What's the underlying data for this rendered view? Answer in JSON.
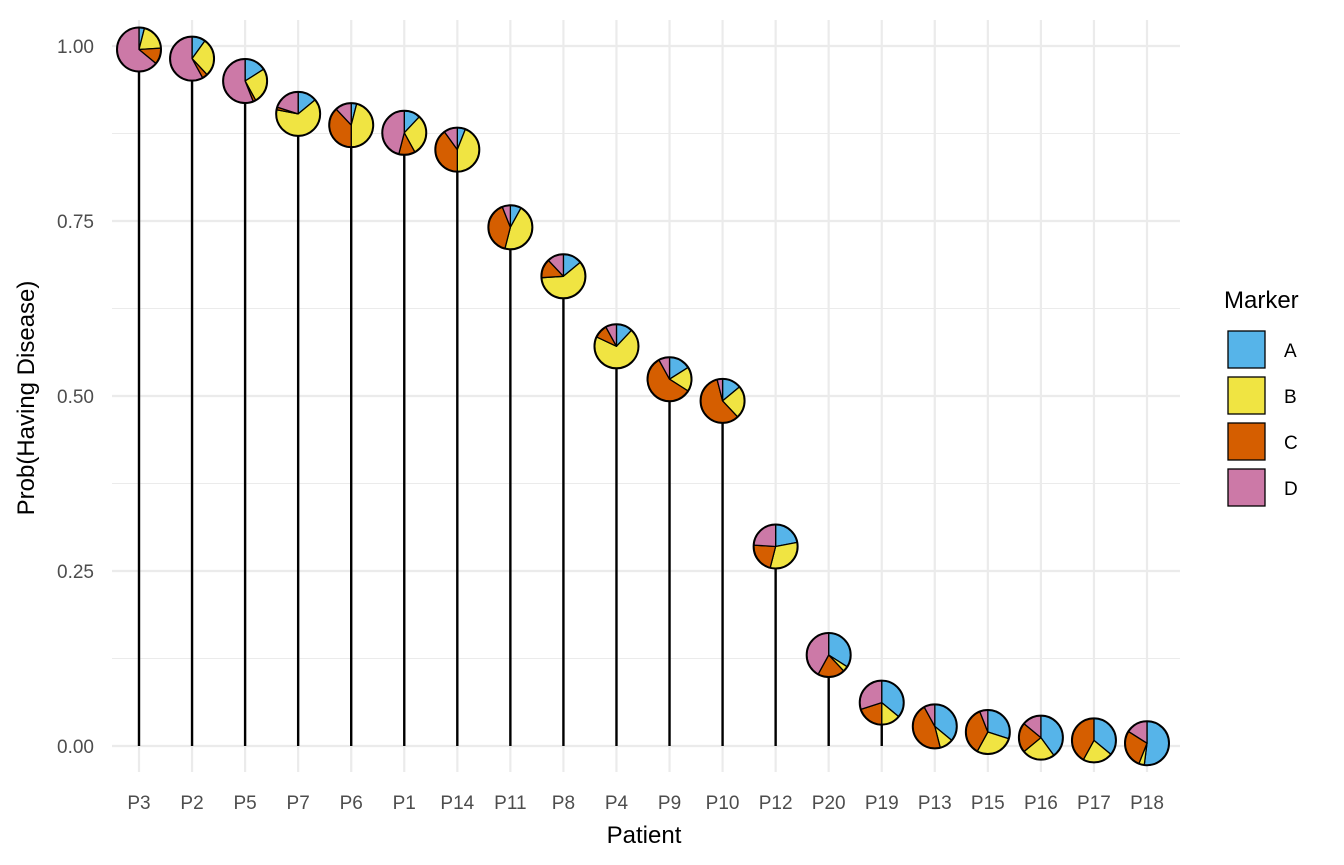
{
  "chart_data": {
    "type": "lollipop-pie",
    "xlabel": "Patient",
    "ylabel": "Prob(Having Disease)",
    "ylim": [
      0,
      1
    ],
    "yticks": [
      "0.00",
      "0.25",
      "0.50",
      "0.75",
      "1.00"
    ],
    "ytick_values": [
      0,
      0.25,
      0.5,
      0.75,
      1.0
    ],
    "grid": true,
    "legend": {
      "title": "Marker",
      "position": "right",
      "items": [
        {
          "label": "A",
          "color": "#56B4E9"
        },
        {
          "label": "B",
          "color": "#F0E442"
        },
        {
          "label": "C",
          "color": "#D55E00"
        },
        {
          "label": "D",
          "color": "#CC79A7"
        }
      ]
    },
    "categories": [
      "P3",
      "P2",
      "P5",
      "P7",
      "P6",
      "P1",
      "P14",
      "P11",
      "P8",
      "P4",
      "P9",
      "P10",
      "P12",
      "P20",
      "P19",
      "P13",
      "P15",
      "P16",
      "P17",
      "P18"
    ],
    "values": [
      0.995,
      0.982,
      0.95,
      0.903,
      0.887,
      0.876,
      0.852,
      0.741,
      0.671,
      0.571,
      0.524,
      0.493,
      0.285,
      0.13,
      0.062,
      0.028,
      0.02,
      0.012,
      0.008,
      0.004
    ],
    "marker_shares": [
      {
        "A": 0.04,
        "B": 0.2,
        "C": 0.12,
        "D": 0.64
      },
      {
        "A": 0.1,
        "B": 0.28,
        "C": 0.04,
        "D": 0.58
      },
      {
        "A": 0.16,
        "B": 0.26,
        "C": 0.02,
        "D": 0.56
      },
      {
        "A": 0.14,
        "B": 0.64,
        "C": 0.02,
        "D": 0.2
      },
      {
        "A": 0.04,
        "B": 0.46,
        "C": 0.38,
        "D": 0.12
      },
      {
        "A": 0.12,
        "B": 0.3,
        "C": 0.12,
        "D": 0.46
      },
      {
        "A": 0.06,
        "B": 0.44,
        "C": 0.4,
        "D": 0.1
      },
      {
        "A": 0.08,
        "B": 0.46,
        "C": 0.4,
        "D": 0.06
      },
      {
        "A": 0.14,
        "B": 0.6,
        "C": 0.14,
        "D": 0.12
      },
      {
        "A": 0.12,
        "B": 0.7,
        "C": 0.1,
        "D": 0.08
      },
      {
        "A": 0.16,
        "B": 0.18,
        "C": 0.58,
        "D": 0.08
      },
      {
        "A": 0.14,
        "B": 0.24,
        "C": 0.58,
        "D": 0.04
      },
      {
        "A": 0.22,
        "B": 0.32,
        "C": 0.22,
        "D": 0.24
      },
      {
        "A": 0.34,
        "B": 0.04,
        "C": 0.2,
        "D": 0.42
      },
      {
        "A": 0.36,
        "B": 0.14,
        "C": 0.2,
        "D": 0.3
      },
      {
        "A": 0.36,
        "B": 0.1,
        "C": 0.46,
        "D": 0.08
      },
      {
        "A": 0.3,
        "B": 0.28,
        "C": 0.36,
        "D": 0.06
      },
      {
        "A": 0.4,
        "B": 0.24,
        "C": 0.22,
        "D": 0.14
      },
      {
        "A": 0.36,
        "B": 0.22,
        "C": 0.42,
        "D": 0.0
      },
      {
        "A": 0.52,
        "B": 0.04,
        "C": 0.28,
        "D": 0.16
      }
    ]
  }
}
